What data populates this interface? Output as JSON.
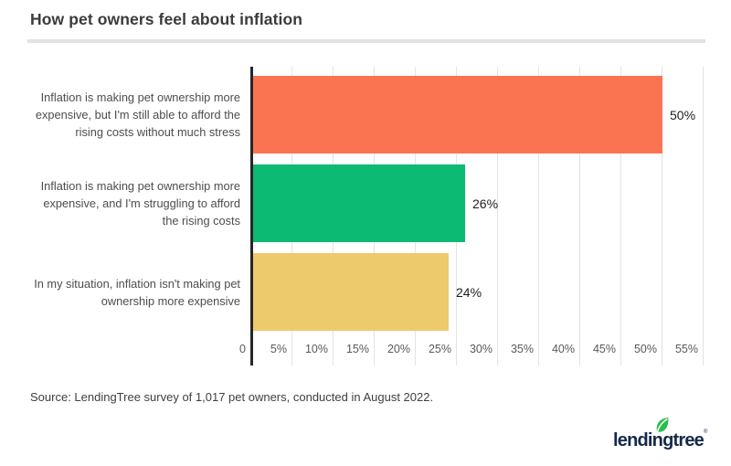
{
  "page": {
    "source": "Source: LendingTree survey of 1,017 pet owners, conducted in August 2022.",
    "logo_text": "lendingtree",
    "logo_reg": "®"
  },
  "colors": {
    "bar_orange": "#fb7452",
    "bar_green": "#0dba74",
    "bar_yellow": "#edca6b",
    "axis_line": "#262626",
    "gridline": "#e3e3e3",
    "logo_navy": "#16294b",
    "leaf_green": "#26be4e"
  },
  "chart_data": {
    "type": "bar",
    "orientation": "horizontal",
    "title": "How pet owners feel about inflation",
    "categories": [
      "Inflation is making pet ownership more expensive, but I'm still able to afford the rising costs without much stress",
      "Inflation is making pet ownership more expensive, and I'm struggling to afford the rising costs",
      "In my situation, inflation isn't making pet ownership more expensive"
    ],
    "values": [
      50,
      26,
      24
    ],
    "value_labels": [
      "50%",
      "26%",
      "24%"
    ],
    "bar_colors": [
      "#fb7452",
      "#0dba74",
      "#edca6b"
    ],
    "xlabel": "",
    "ylabel": "",
    "xlim": [
      0,
      55
    ],
    "x_ticks": [
      0,
      5,
      10,
      15,
      20,
      25,
      30,
      35,
      40,
      45,
      50,
      55
    ],
    "x_tick_labels": [
      "0",
      "5%",
      "10%",
      "15%",
      "20%",
      "25%",
      "30%",
      "35%",
      "40%",
      "45%",
      "50%",
      "55%"
    ],
    "grid": true,
    "legend": false
  }
}
